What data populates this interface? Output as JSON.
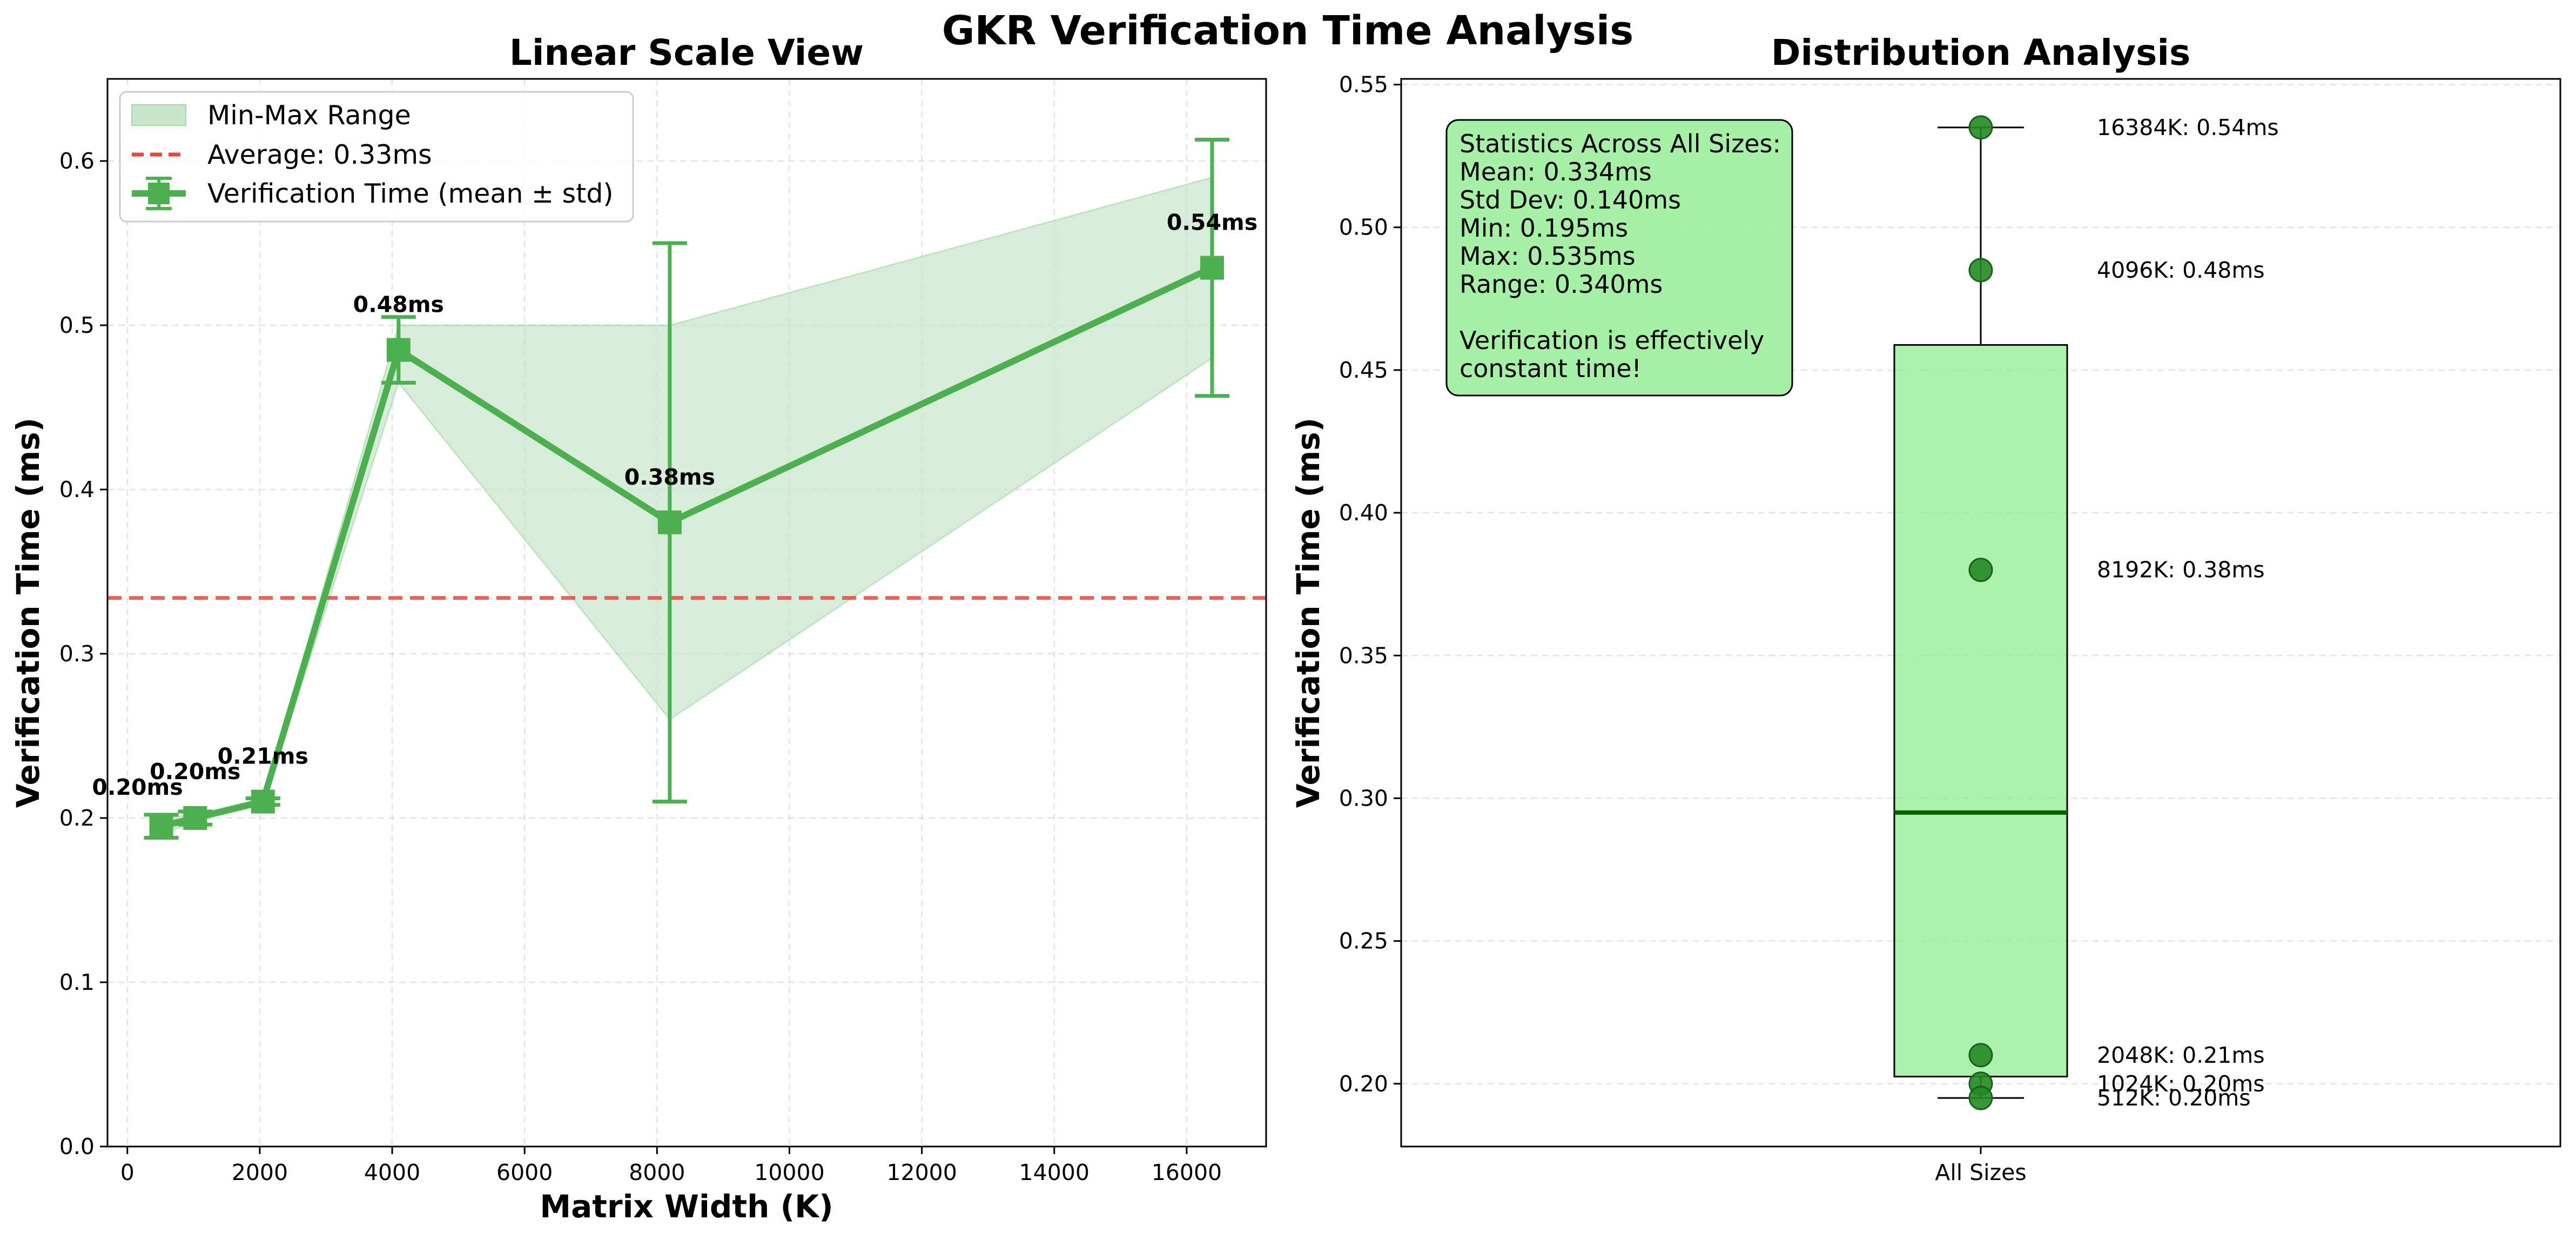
{
  "figure": {
    "title": "GKR Verification Time Analysis"
  },
  "colors": {
    "line": "#4caf50",
    "band": "#c8e6c9",
    "average": "#f44336",
    "box": "#90ee90",
    "median": "#006400",
    "points": "#228b22",
    "stats_bg": "#90ee90"
  },
  "chart_data": [
    {
      "type": "line",
      "title": "Linear Scale View",
      "xlabel": "Matrix Width (K)",
      "ylabel": "Verification Time (ms)",
      "xlim": [
        -300,
        17200
      ],
      "ylim": [
        0.0,
        0.65
      ],
      "xticks": [
        0,
        2000,
        4000,
        6000,
        8000,
        10000,
        12000,
        14000,
        16000
      ],
      "xtick_labels": [
        "0",
        "2000",
        "4000",
        "6000",
        "8000",
        "10000",
        "12000",
        "14000",
        "16000"
      ],
      "yticks": [
        0.0,
        0.1,
        0.2,
        0.3,
        0.4,
        0.5,
        0.6
      ],
      "ytick_labels": [
        "0.0",
        "0.1",
        "0.2",
        "0.3",
        "0.4",
        "0.5",
        "0.6"
      ],
      "grid": true,
      "legend_position": "upper-left",
      "series": [
        {
          "name": "Verification Time (mean ± std)",
          "x": [
            512,
            1024,
            2048,
            4096,
            8192,
            16384
          ],
          "mean": [
            0.195,
            0.2,
            0.21,
            0.485,
            0.38,
            0.535
          ],
          "std": [
            0.007,
            0.004,
            0.002,
            0.02,
            0.17,
            0.078
          ],
          "min": [
            0.19,
            0.198,
            0.208,
            0.465,
            0.26,
            0.48
          ],
          "max": [
            0.2,
            0.202,
            0.212,
            0.5,
            0.5,
            0.59
          ],
          "labels": [
            "0.20ms",
            "0.20ms",
            "0.21ms",
            "0.48ms",
            "0.38ms",
            "0.54ms"
          ]
        }
      ],
      "band_name": "Min-Max Range",
      "average": {
        "value": 0.334,
        "label": "Average: 0.33ms"
      }
    },
    {
      "type": "box",
      "title": "Distribution Analysis",
      "xlabel": "",
      "ylabel": "Verification Time (ms)",
      "category": "All Sizes",
      "ylim": [
        0.178,
        0.552
      ],
      "yticks": [
        0.2,
        0.25,
        0.3,
        0.35,
        0.4,
        0.45,
        0.5,
        0.55
      ],
      "ytick_labels": [
        "0.20",
        "0.25",
        "0.30",
        "0.35",
        "0.40",
        "0.45",
        "0.50",
        "0.55"
      ],
      "grid": true,
      "box": {
        "whisker_low": 0.195,
        "q1": 0.2025,
        "median": 0.295,
        "q3": 0.4588,
        "whisker_high": 0.535
      },
      "points": [
        {
          "label": "16384K: 0.54ms",
          "value": 0.535
        },
        {
          "label": "4096K: 0.48ms",
          "value": 0.485
        },
        {
          "label": "8192K: 0.38ms",
          "value": 0.38
        },
        {
          "label": "2048K: 0.21ms",
          "value": 0.21
        },
        {
          "label": "1024K: 0.20ms",
          "value": 0.2
        },
        {
          "label": "512K: 0.20ms",
          "value": 0.195
        }
      ],
      "stats_box": [
        "Statistics Across All Sizes:",
        "Mean: 0.334ms",
        "Std Dev: 0.140ms",
        "Min: 0.195ms",
        "Max: 0.535ms",
        "Range: 0.340ms",
        "",
        "Verification is effectively",
        "constant time!"
      ]
    }
  ]
}
